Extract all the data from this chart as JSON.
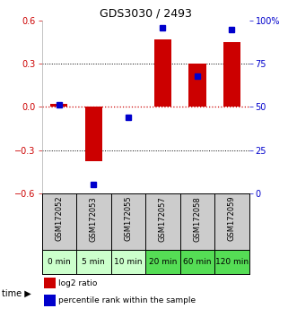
{
  "title": "GDS3030 / 2493",
  "samples": [
    "GSM172052",
    "GSM172053",
    "GSM172055",
    "GSM172057",
    "GSM172058",
    "GSM172059"
  ],
  "time_labels": [
    "0 min",
    "5 min",
    "10 min",
    "20 min",
    "60 min",
    "120 min"
  ],
  "log2_ratio": [
    0.02,
    -0.38,
    0.0,
    0.47,
    0.3,
    0.45
  ],
  "percentile_rank": [
    51,
    5,
    44,
    96,
    68,
    95
  ],
  "ylim_left": [
    -0.6,
    0.6
  ],
  "ylim_right": [
    0,
    100
  ],
  "yticks_left": [
    -0.6,
    -0.3,
    0.0,
    0.3,
    0.6
  ],
  "yticks_right": [
    0,
    25,
    50,
    75,
    100
  ],
  "bar_color": "#cc0000",
  "dot_color": "#0000cc",
  "zero_line_color": "#cc0000",
  "grid_color": "#000000",
  "bg_color": "#ffffff",
  "plot_bg": "#ffffff",
  "title_fontsize": 9,
  "tick_fontsize": 7,
  "right_tick_color": "#0000cc",
  "left_tick_color": "#cc0000",
  "sample_bg": "#cccccc",
  "time_bg_light": "#ccffcc",
  "time_bg_dark": "#55dd55",
  "time_threshold_idx": 3,
  "legend_fontsize": 6.5,
  "sample_fontsize": 6.0,
  "time_fontsize": 6.5
}
